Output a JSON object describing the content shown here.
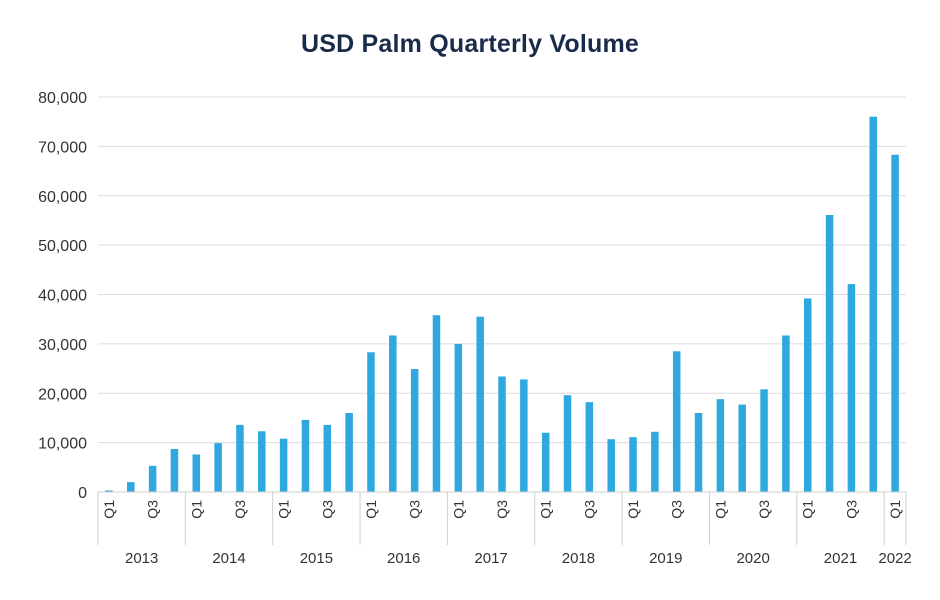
{
  "chart_data": {
    "type": "bar",
    "title": "USD Palm Quarterly Volume",
    "xlabel": "",
    "ylabel": "",
    "ylim": [
      0,
      80000
    ],
    "y_ticks": [
      "0",
      "10,000",
      "20,000",
      "30,000",
      "40,000",
      "50,000",
      "60,000",
      "70,000",
      "80,000"
    ],
    "bar_color": "#2ea8df",
    "grid": true,
    "categories": [
      "2013 Q1",
      "2013 Q2",
      "2013 Q3",
      "2013 Q4",
      "2014 Q1",
      "2014 Q2",
      "2014 Q3",
      "2014 Q4",
      "2015 Q1",
      "2015 Q2",
      "2015 Q3",
      "2015 Q4",
      "2016 Q1",
      "2016 Q2",
      "2016 Q3",
      "2016 Q4",
      "2017 Q1",
      "2017 Q2",
      "2017 Q3",
      "2017 Q4",
      "2018 Q1",
      "2018 Q2",
      "2018 Q3",
      "2018 Q4",
      "2019 Q1",
      "2019 Q2",
      "2019 Q3",
      "2019 Q4",
      "2020 Q1",
      "2020 Q2",
      "2020 Q3",
      "2020 Q4",
      "2021 Q1",
      "2021 Q2",
      "2021 Q3",
      "2021 Q4",
      "2022 Q1"
    ],
    "values": [
      300,
      2000,
      5300,
      8700,
      7600,
      9900,
      13600,
      12300,
      10800,
      14600,
      13600,
      16000,
      28300,
      31700,
      24900,
      35800,
      30000,
      35500,
      23400,
      22800,
      12000,
      19600,
      18200,
      10700,
      11100,
      12200,
      28500,
      16000,
      18800,
      17700,
      20800,
      31700,
      39200,
      56100,
      42100,
      76000,
      68300
    ],
    "quarter_tick_labels": [
      "Q1",
      "",
      "Q3",
      "",
      "Q1",
      "",
      "Q3",
      "",
      "Q1",
      "",
      "Q3",
      "",
      "Q1",
      "",
      "Q3",
      "",
      "Q1",
      "",
      "Q3",
      "",
      "Q1",
      "",
      "Q3",
      "",
      "Q1",
      "",
      "Q3",
      "",
      "Q1",
      "",
      "Q3",
      "",
      "Q1",
      "",
      "Q3",
      "",
      "Q1"
    ],
    "year_groups": [
      {
        "label": "2013",
        "count": 4
      },
      {
        "label": "2014",
        "count": 4
      },
      {
        "label": "2015",
        "count": 4
      },
      {
        "label": "2016",
        "count": 4
      },
      {
        "label": "2017",
        "count": 4
      },
      {
        "label": "2018",
        "count": 4
      },
      {
        "label": "2019",
        "count": 4
      },
      {
        "label": "2020",
        "count": 4
      },
      {
        "label": "2021",
        "count": 4
      },
      {
        "label": "2022",
        "count": 1
      }
    ]
  }
}
